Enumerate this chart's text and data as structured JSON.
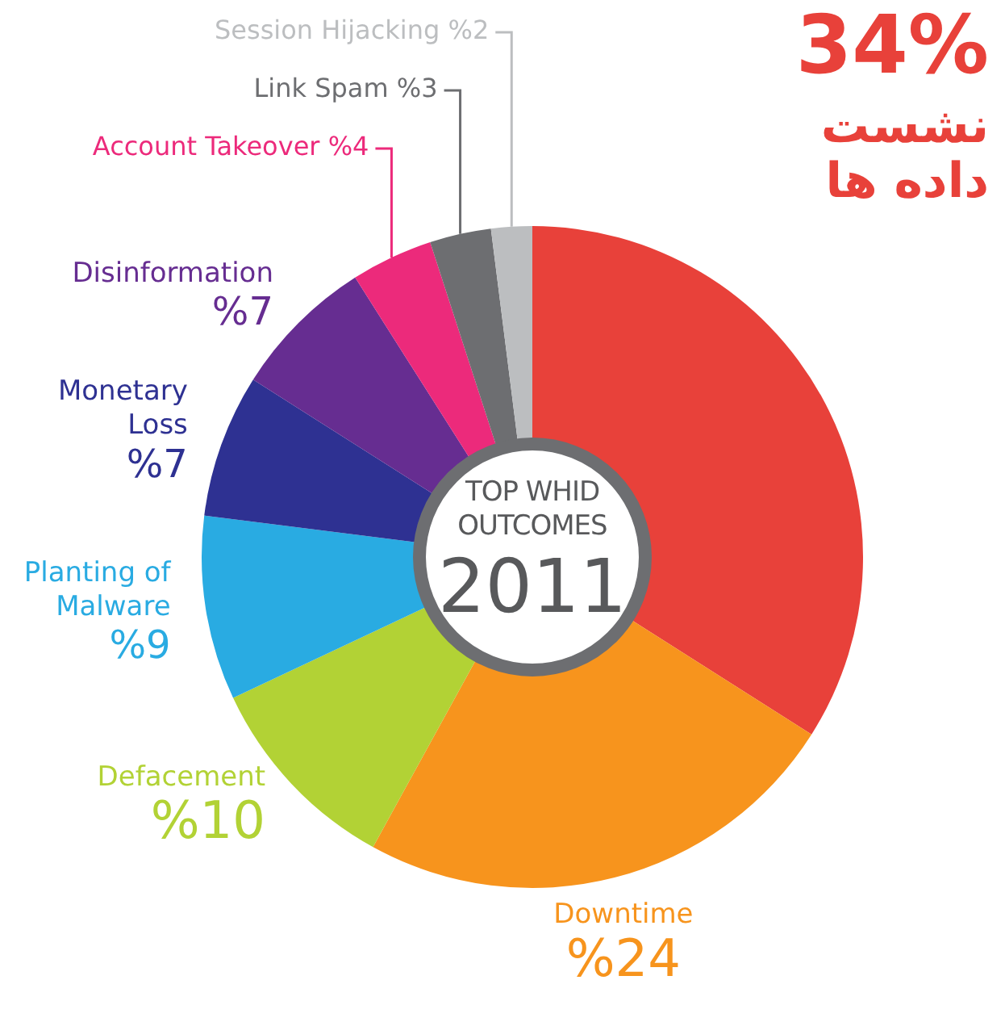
{
  "chart_data": {
    "type": "donut",
    "categories": [
      "نشست داده ها",
      "Downtime",
      "Defacement",
      "Planting of Malware",
      "Monetary Loss",
      "Disinformation",
      "Account Takeover",
      "Link Spam",
      "Session Hijacking"
    ],
    "values": [
      34,
      24,
      10,
      9,
      7,
      7,
      4,
      3,
      2
    ],
    "colors": [
      "#e8413a",
      "#f7941d",
      "#b2d235",
      "#29abe2",
      "#2e3192",
      "#662d91",
      "#ec2a7b",
      "#6d6e71",
      "#bcbec0"
    ],
    "value_labels": [
      "34%",
      "%24",
      "%10",
      "%9",
      "%7",
      "%7",
      "%4",
      "%3",
      "%2"
    ],
    "annotations": [
      "TOP WHID OUTCOMES",
      "2011"
    ],
    "legend": false
  }
}
